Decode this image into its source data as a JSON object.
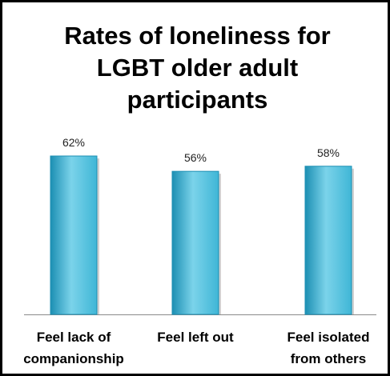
{
  "chart_data": {
    "type": "bar",
    "title": "Rates of loneliness for LGBT older adult participants",
    "title_lines": [
      "Rates of loneliness for",
      "LGBT older adult",
      "participants"
    ],
    "categories": [
      "Feel lack of companionship",
      "Feel left out",
      "Feel isolated from others"
    ],
    "category_lines": [
      [
        "Feel lack of",
        "companionship"
      ],
      [
        "Feel left out"
      ],
      [
        "Feel isolated",
        "from others"
      ]
    ],
    "values": [
      62,
      56,
      58
    ],
    "data_labels": [
      "62%",
      "56%",
      "58%"
    ],
    "unit": "%",
    "xlabel": "",
    "ylabel": "",
    "grid": false,
    "legend": "none",
    "bar_color": "#3fb6d6",
    "bar_color_dark": "#1c8fb3",
    "bar_color_light": "#7bd3ea"
  }
}
